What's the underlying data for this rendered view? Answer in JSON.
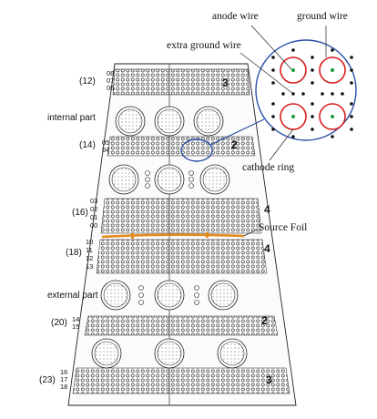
{
  "callouts": {
    "anode_wire": "anode wire",
    "ground_wire": "ground wire",
    "extra_ground_wire": "extra ground wire",
    "cathode_ring": "cathode ring",
    "source_foil": "Source Foil"
  },
  "parts": {
    "internal": "internal part",
    "external": "external part"
  },
  "groups": {
    "g12": {
      "count": "(12)",
      "layers": [
        "08",
        "07",
        "06"
      ],
      "rows": "3"
    },
    "g14": {
      "count": "(14)",
      "layers": [
        "05",
        "04"
      ],
      "rows": "2"
    },
    "g16": {
      "count": "(16)",
      "layers": [
        "03",
        "02",
        "01",
        "00"
      ],
      "rows": "4"
    },
    "g18": {
      "count": "(18)",
      "layers": [
        "10",
        "11",
        "12",
        "13"
      ],
      "rows": "4"
    },
    "g20": {
      "count": "(20)",
      "layers": [
        "14",
        "15"
      ],
      "rows": "2"
    },
    "g23": {
      "count": "(23)",
      "layers": [
        "16",
        "17",
        "18"
      ],
      "rows": "3"
    }
  },
  "colors": {
    "ring": "#d91e1e",
    "wire": "#1f9b3a",
    "foil": "#e38a1c",
    "magnifier": "#2b4fa8",
    "line": "#222222"
  }
}
